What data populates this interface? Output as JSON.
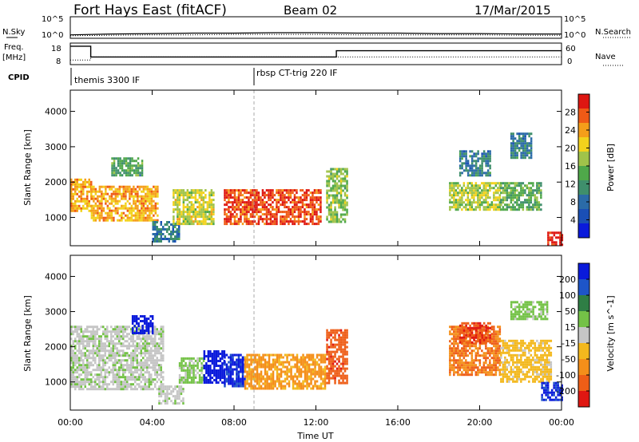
{
  "header": {
    "station": "Fort Hays East (fitACF)",
    "beam": "Beam 02",
    "date": "17/Mar/2015"
  },
  "noise_panel": {
    "left_label": "N.Sky",
    "right_label": "N.Search",
    "left_ticks": [
      "10^5",
      "10^0"
    ],
    "right_ticks": [
      "10^5",
      "10^0"
    ]
  },
  "freq_panel": {
    "left_label_1": "Freq.",
    "left_label_2": "[MHz]",
    "right_label": "Nave",
    "left_ticks": [
      "18",
      "8"
    ],
    "right_ticks": [
      "60",
      "0"
    ]
  },
  "cpid": {
    "label": "CPID",
    "segments": [
      {
        "name": "themis 3300 IF",
        "start_hour": 0
      },
      {
        "name": "rbsp CT-trig 220 IF",
        "start_hour": 9
      }
    ]
  },
  "chart_data": [
    {
      "type": "line",
      "name": "noise",
      "x_range": [
        0,
        24
      ],
      "series": [
        {
          "name": "N.Sky",
          "style": "solid",
          "values_log10": [
            0.8,
            1.0,
            1.1,
            1.2,
            1.2,
            1.3,
            1.3,
            1.2,
            1.2,
            1.1,
            1.1,
            1.0,
            1.0
          ]
        },
        {
          "name": "N.Search",
          "style": "dotted",
          "values_log10": [
            0.6,
            0.7,
            0.8,
            0.8,
            0.9,
            0.9,
            0.9,
            0.8,
            0.8,
            0.8,
            0.8,
            0.7,
            0.7
          ]
        }
      ]
    },
    {
      "type": "line",
      "name": "frequency",
      "x_range": [
        0,
        24
      ],
      "series": [
        {
          "name": "Freq.",
          "style": "solid",
          "points": [
            [
              0,
              18
            ],
            [
              1.0,
              18
            ],
            [
              1.0,
              11
            ],
            [
              13.0,
              11
            ],
            [
              13.0,
              15
            ],
            [
              24,
              15
            ]
          ]
        },
        {
          "name": "Nave",
          "style": "dotted",
          "points": [
            [
              0,
              9
            ],
            [
              1.0,
              9
            ],
            [
              1.0,
              11
            ],
            [
              24,
              11
            ]
          ]
        }
      ]
    },
    {
      "type": "heatmap",
      "name": "power",
      "xlabel": "",
      "ylabel": "Slant Range [km]",
      "x_range_hours": [
        0,
        24
      ],
      "ylim": [
        200,
        4600
      ],
      "yticks": [
        1000,
        2000,
        3000,
        4000
      ],
      "colorbar": {
        "label": "Power [dB]",
        "ticks": [
          4,
          8,
          12,
          16,
          20,
          24,
          28
        ],
        "range": [
          0,
          32
        ],
        "colors": [
          "#0a1adb",
          "#1a4fb5",
          "#2b6ba8",
          "#3f8f6c",
          "#4fa84a",
          "#a0c34a",
          "#f2d21c",
          "#f59e1a",
          "#ef5a16",
          "#de1712"
        ]
      },
      "regions": [
        {
          "x0": 0.0,
          "x1": 1.0,
          "y0": 1200,
          "y1": 2100,
          "level": 22
        },
        {
          "x0": 1.0,
          "x1": 4.3,
          "y0": 900,
          "y1": 1900,
          "level": 22
        },
        {
          "x0": 2.0,
          "x1": 3.5,
          "y0": 2200,
          "y1": 2700,
          "level": 12
        },
        {
          "x0": 4.0,
          "x1": 5.3,
          "y0": 300,
          "y1": 900,
          "level": 8
        },
        {
          "x0": 5.0,
          "x1": 7.0,
          "y0": 800,
          "y1": 1800,
          "level": 18
        },
        {
          "x0": 7.5,
          "x1": 12.2,
          "y0": 800,
          "y1": 1800,
          "level": 27
        },
        {
          "x0": 12.5,
          "x1": 13.5,
          "y0": 900,
          "y1": 2400,
          "level": 15
        },
        {
          "x0": 18.5,
          "x1": 21.0,
          "y0": 1200,
          "y1": 2000,
          "level": 17
        },
        {
          "x0": 19.0,
          "x1": 20.5,
          "y0": 2200,
          "y1": 2900,
          "level": 8
        },
        {
          "x0": 21.0,
          "x1": 23.0,
          "y0": 1200,
          "y1": 2000,
          "level": 13
        },
        {
          "x0": 21.5,
          "x1": 22.5,
          "y0": 2700,
          "y1": 3400,
          "level": 8
        },
        {
          "x0": 23.3,
          "x1": 24.0,
          "y0": 250,
          "y1": 600,
          "level": 29
        }
      ]
    },
    {
      "type": "heatmap",
      "name": "velocity",
      "xlabel": "Time UT",
      "ylabel": "Slant Range [km]",
      "x_range_hours": [
        0,
        24
      ],
      "xticks": [
        "00:00",
        "04:00",
        "08:00",
        "12:00",
        "16:00",
        "20:00",
        "00:00"
      ],
      "ylim": [
        200,
        4600
      ],
      "yticks": [
        1000,
        2000,
        3000,
        4000
      ],
      "colorbar": {
        "label": "Velocity [m s^-1]",
        "ticks": [
          "200",
          "100",
          "50",
          "15",
          "-15",
          "-50",
          "-100",
          "-200"
        ],
        "range": [
          -250,
          250
        ],
        "colors": [
          "#0a1adb",
          "#1e55c8",
          "#2f7e45",
          "#74c247",
          "#c6c6c6",
          "#f3b81d",
          "#f48f1a",
          "#ee5e17",
          "#df1712"
        ]
      },
      "regions": [
        {
          "x0": 0.0,
          "x1": 4.5,
          "y0": 800,
          "y1": 2600,
          "level": 0
        },
        {
          "x0": 3.0,
          "x1": 4.0,
          "y0": 2400,
          "y1": 2900,
          "level": 220
        },
        {
          "x0": 4.3,
          "x1": 5.5,
          "y0": 400,
          "y1": 900,
          "level": 0
        },
        {
          "x0": 5.3,
          "x1": 6.5,
          "y0": 1000,
          "y1": 1700,
          "level": 30
        },
        {
          "x0": 6.5,
          "x1": 7.5,
          "y0": 1000,
          "y1": 1900,
          "level": 220
        },
        {
          "x0": 7.5,
          "x1": 8.5,
          "y0": 900,
          "y1": 1800,
          "level": 200
        },
        {
          "x0": 8.5,
          "x1": 12.5,
          "y0": 800,
          "y1": 1800,
          "level": -110
        },
        {
          "x0": 12.5,
          "x1": 13.5,
          "y0": 1000,
          "y1": 2500,
          "level": -180
        },
        {
          "x0": 18.5,
          "x1": 21.0,
          "y0": 1200,
          "y1": 2600,
          "level": -150
        },
        {
          "x0": 19.0,
          "x1": 20.5,
          "y0": 2100,
          "y1": 2700,
          "level": -200
        },
        {
          "x0": 21.0,
          "x1": 23.5,
          "y0": 1000,
          "y1": 2200,
          "level": -60
        },
        {
          "x0": 21.5,
          "x1": 23.3,
          "y0": 2800,
          "y1": 3300,
          "level": 40
        },
        {
          "x0": 23.0,
          "x1": 24.0,
          "y0": 500,
          "y1": 1000,
          "level": 200
        }
      ]
    }
  ]
}
